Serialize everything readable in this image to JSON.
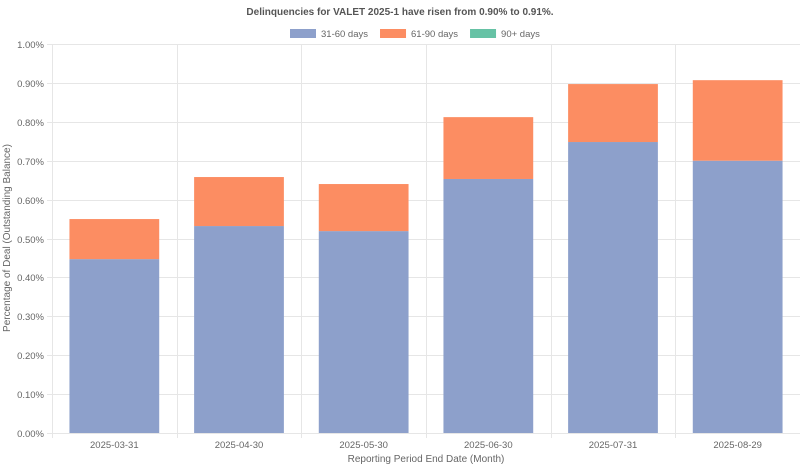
{
  "chart_data": {
    "type": "bar",
    "stacked": true,
    "title": "Delinquencies for VALET 2025-1 have risen from 0.90% to 0.91%.",
    "xlabel": "Reporting Period End Date (Month)",
    "ylabel": "Percentage of Deal (Outstanding Balance)",
    "ylim": [
      0,
      1.0
    ],
    "yticks": [
      "0.00%",
      "0.10%",
      "0.20%",
      "0.30%",
      "0.40%",
      "0.50%",
      "0.60%",
      "0.70%",
      "0.80%",
      "0.90%",
      "1.00%"
    ],
    "grid": true,
    "legend_position": "top-center",
    "categories": [
      "2025-03-31",
      "2025-04-30",
      "2025-05-30",
      "2025-06-30",
      "2025-07-31",
      "2025-08-29"
    ],
    "series": [
      {
        "name": "31-60 days",
        "color": "#8da0cb",
        "values": [
          0.447,
          0.532,
          0.519,
          0.653,
          0.748,
          0.7
        ]
      },
      {
        "name": "61-90 days",
        "color": "#fc8d62",
        "values": [
          0.103,
          0.126,
          0.121,
          0.159,
          0.149,
          0.207
        ]
      },
      {
        "name": "90+ days",
        "color": "#66c2a5",
        "values": [
          0,
          0,
          0,
          0,
          0,
          0
        ]
      }
    ]
  }
}
